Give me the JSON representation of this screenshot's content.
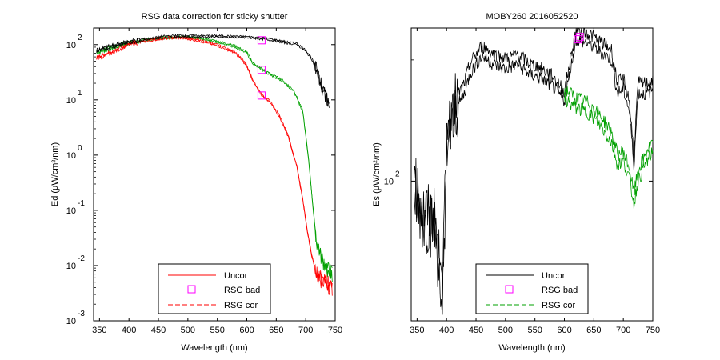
{
  "chart_data": [
    {
      "type": "line",
      "title": "RSG data correction for sticky shutter",
      "xlabel": "Wavelength (nm)",
      "ylabel": "Ed (μW/cm²/nm)",
      "xlim": [
        340,
        750
      ],
      "ylim": [
        0.001,
        200
      ],
      "yscale": "log",
      "x_ticks": [
        350,
        400,
        450,
        500,
        550,
        600,
        650,
        700,
        750
      ],
      "y_ticks": [
        {
          "base": "10",
          "exp": "-3"
        },
        {
          "base": "10",
          "exp": "-2"
        },
        {
          "base": "10",
          "exp": "-1"
        },
        {
          "base": "10",
          "exp": "0"
        },
        {
          "base": "10",
          "exp": "1"
        },
        {
          "base": "10",
          "exp": "2"
        }
      ],
      "legend": {
        "placement": "bottom-center",
        "entries": [
          {
            "label": "Uncor",
            "color": "#ff0000",
            "style": "solid"
          },
          {
            "label": "RSG bad",
            "color": "#ff00ff",
            "style": "square"
          },
          {
            "label": "RSG cor",
            "color": "#ff0000",
            "style": "dashed"
          }
        ]
      },
      "series": [
        {
          "role": "green-pair",
          "color": "#00a000",
          "style": "solid",
          "x": [
            345,
            370,
            400,
            430,
            460,
            490,
            520,
            550,
            580,
            600,
            610,
            625,
            640,
            660,
            680,
            695,
            705,
            712,
            718,
            725,
            735,
            745
          ],
          "y": [
            70,
            85,
            105,
            118,
            130,
            135,
            125,
            110,
            90,
            70,
            45,
            35,
            28,
            22,
            14,
            6,
            0.8,
            0.12,
            0.03,
            0.015,
            0.009,
            0.007
          ]
        },
        {
          "role": "red-pair",
          "color": "#ff0000",
          "style": "solid",
          "x": [
            345,
            370,
            400,
            430,
            460,
            490,
            520,
            550,
            580,
            590,
            600,
            612,
            625,
            640,
            655,
            670,
            685,
            695,
            703,
            710,
            718,
            725,
            735,
            745
          ],
          "y": [
            55,
            70,
            100,
            115,
            128,
            130,
            115,
            95,
            70,
            55,
            40,
            20,
            12,
            9,
            5,
            2.2,
            0.6,
            0.15,
            0.04,
            0.015,
            0.007,
            0.006,
            0.005,
            0.004
          ]
        },
        {
          "role": "black-pair",
          "color": "#000000",
          "style": "solid",
          "x": [
            345,
            370,
            400,
            430,
            460,
            490,
            520,
            550,
            580,
            610,
            630,
            650,
            670,
            685,
            700,
            710,
            720,
            730,
            740
          ],
          "y": [
            75,
            90,
            110,
            122,
            135,
            140,
            138,
            137,
            135,
            130,
            125,
            115,
            105,
            100,
            75,
            55,
            30,
            15,
            8
          ]
        }
      ],
      "markers": [
        {
          "x": 625,
          "y": 120
        },
        {
          "x": 625,
          "y": 35
        },
        {
          "x": 625,
          "y": 12
        }
      ]
    },
    {
      "type": "line",
      "title": "MOBY260  2016052520",
      "xlabel": "Wavelength (nm)",
      "ylabel": "Es (μW/cm²/nm)",
      "xlim": [
        340,
        750
      ],
      "ylim": [
        45,
        240
      ],
      "yscale": "log",
      "x_ticks": [
        350,
        400,
        450,
        500,
        550,
        600,
        650,
        700,
        750
      ],
      "y_ticks": [
        {
          "base": "10",
          "exp": "2",
          "value": 100
        }
      ],
      "legend": {
        "placement": "bottom-center",
        "entries": [
          {
            "label": "Uncor",
            "color": "#000000",
            "style": "solid"
          },
          {
            "label": "RSG bad",
            "color": "#ff00ff",
            "style": "square"
          },
          {
            "label": "RSG cor",
            "color": "#00a000",
            "style": "dashed"
          }
        ]
      },
      "series": [
        {
          "role": "uncor",
          "color": "#000000",
          "style": "solid",
          "x": [
            345,
            360,
            380,
            393,
            400,
            410,
            430,
            440,
            460,
            480,
            500,
            520,
            540,
            560,
            580,
            600,
            620,
            640,
            660,
            680,
            690,
            700,
            710,
            718,
            725,
            740,
            750
          ],
          "y": [
            95,
            80,
            78,
            50,
            120,
            145,
            165,
            185,
            205,
            195,
            190,
            195,
            185,
            180,
            172,
            158,
            225,
            220,
            210,
            200,
            165,
            170,
            150,
            110,
            165,
            165,
            168
          ]
        },
        {
          "role": "green-cor",
          "color": "#00a000",
          "style": "solid",
          "x": [
            600,
            620,
            640,
            660,
            680,
            690,
            700,
            710,
            718,
            725,
            740,
            750
          ],
          "y": [
            160,
            152,
            148,
            138,
            125,
            110,
            112,
            102,
            88,
            100,
            112,
            118
          ]
        }
      ],
      "markers": [
        {
          "x": 623,
          "y": 225
        },
        {
          "x": 626,
          "y": 228
        }
      ]
    }
  ]
}
